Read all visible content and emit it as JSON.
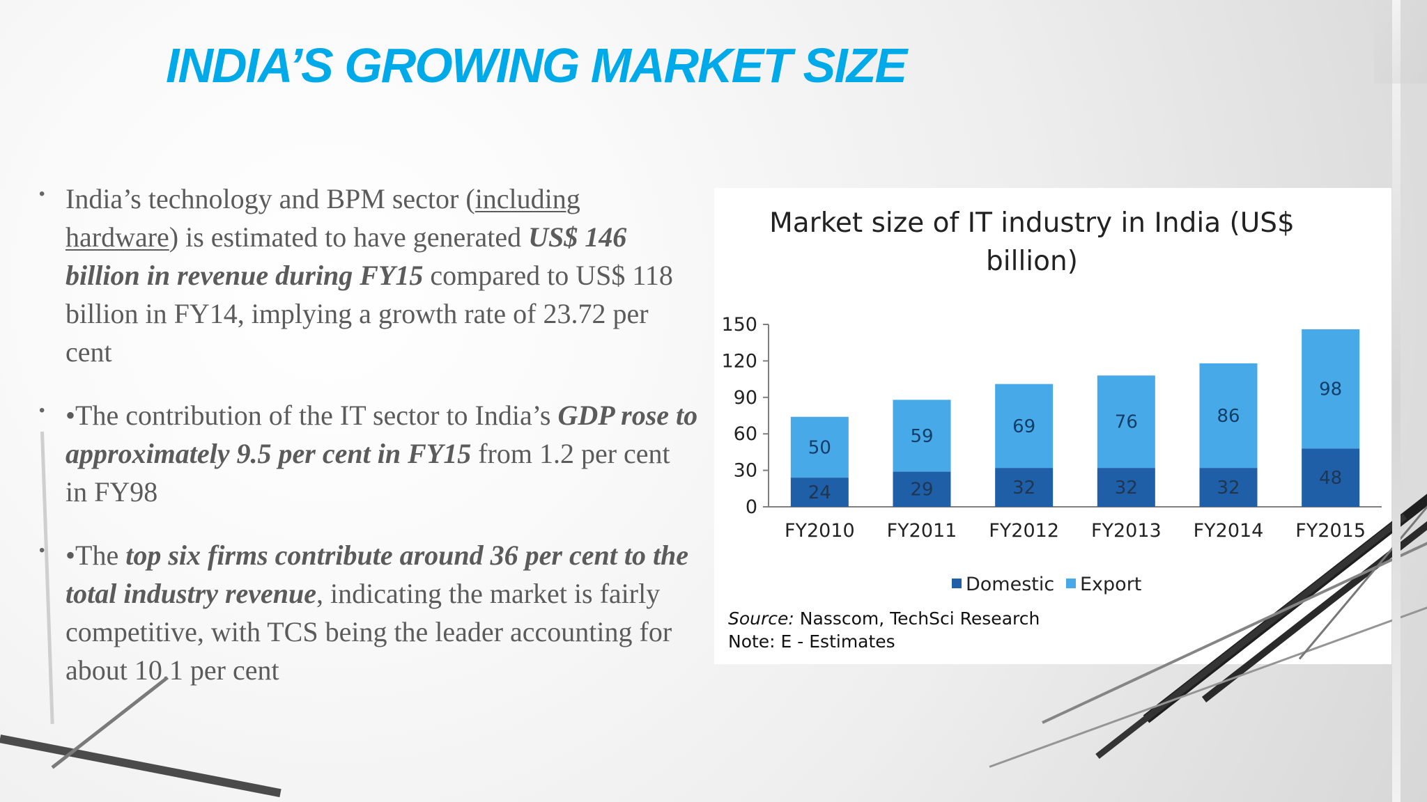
{
  "slide": {
    "title": "INDIA’S GROWING MARKET SIZE",
    "bullets": [
      {
        "marker": "•",
        "segments": [
          {
            "text": "India’s technology and BPM sector (",
            "style": "normal"
          },
          {
            "text": "including hardware",
            "style": "underline"
          },
          {
            "text": ") is estimated to have generated ",
            "style": "normal"
          },
          {
            "text": "US$ 146 billion in revenue during FY15",
            "style": "bold-italic"
          },
          {
            "text": " compared to US$ 118 billion in FY14, implying a growth rate of 23.72 per cent",
            "style": "normal"
          }
        ]
      },
      {
        "marker": "•",
        "segments": [
          {
            "text": "•The contribution of the IT sector to India’s ",
            "style": "normal"
          },
          {
            "text": "GDP rose to approximately 9.5 per cent in FY15",
            "style": "bold-italic"
          },
          {
            "text": " from 1.2 per cent in FY98",
            "style": "normal"
          }
        ]
      },
      {
        "marker": "•",
        "segments": [
          {
            "text": "•The ",
            "style": "normal"
          },
          {
            "text": "top six firms contribute around 36 per cent to the total industry revenue",
            "style": "bold-italic"
          },
          {
            "text": ", indicating the market is fairly competitive, with TCS being the leader accounting for about 10.1 per cent",
            "style": "normal"
          }
        ]
      }
    ]
  },
  "chart_data": {
    "type": "bar",
    "title": "Market size of IT industry in India (US$ billion)",
    "title_lines": [
      "Market size of IT industry in India (US$",
      "billion)"
    ],
    "categories": [
      "FY2010",
      "FY2011",
      "FY2012",
      "FY2013",
      "FY2014",
      "FY2015"
    ],
    "series": [
      {
        "name": "Domestic",
        "values": [
          24,
          29,
          32,
          32,
          32,
          48
        ],
        "color": "#1f5fa8"
      },
      {
        "name": "Export",
        "values": [
          50,
          59,
          69,
          76,
          86,
          98
        ],
        "color": "#47a9e8"
      }
    ],
    "stacked": true,
    "xlabel": "",
    "ylabel": "",
    "ylim": [
      0,
      150
    ],
    "yticks": [
      0,
      30,
      60,
      90,
      120,
      150
    ],
    "grid": false,
    "legend_position": "bottom-center",
    "data_labels": true,
    "source_label": "Source:",
    "source_text": "Nasscom, TechSci Research",
    "note": "Note: E - Estimates"
  },
  "colors": {
    "title": "#00a9e8",
    "body_text": "#5b5b5b",
    "domestic": "#1f5fa8",
    "export": "#47a9e8"
  }
}
